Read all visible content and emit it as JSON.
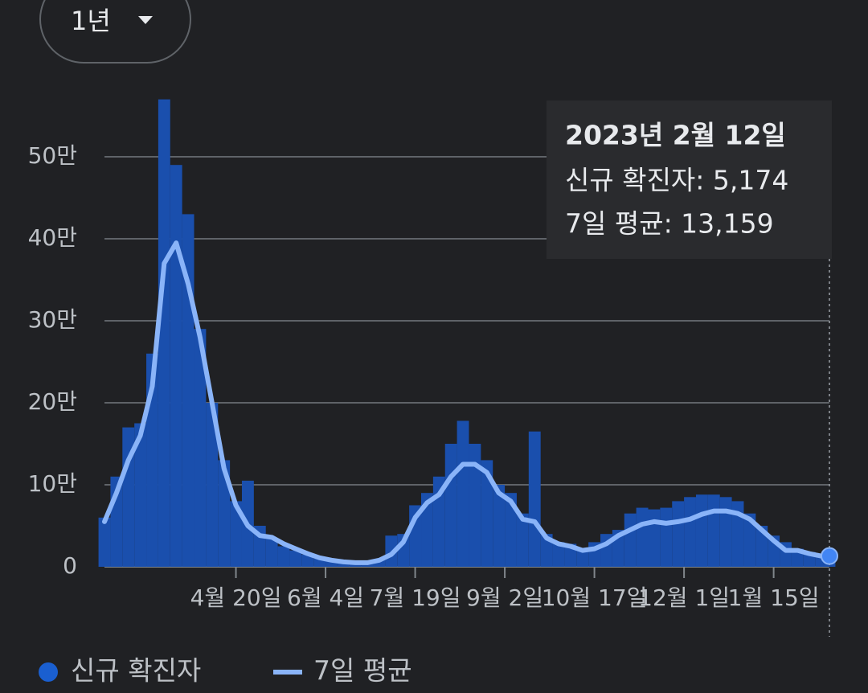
{
  "control": {
    "range": "1년"
  },
  "chart_data": {
    "type": "bar",
    "x": [
      0,
      6,
      12,
      18,
      24,
      30,
      36,
      42,
      48,
      54,
      60,
      66,
      72,
      78,
      84,
      90,
      96,
      102,
      108,
      114,
      120,
      126,
      132,
      138,
      144,
      150,
      156,
      162,
      168,
      174,
      180,
      186,
      192,
      198,
      204,
      210,
      216,
      222,
      228,
      234,
      240,
      246,
      252,
      258,
      264,
      270,
      276,
      282,
      288,
      294,
      300,
      306,
      312,
      318,
      324,
      330,
      336,
      342,
      348,
      354,
      360,
      364
    ],
    "xlim": [
      0,
      364
    ],
    "xticks": [
      {
        "value": 66,
        "label": "4월 20일"
      },
      {
        "value": 111,
        "label": "6월 4일"
      },
      {
        "value": 156,
        "label": "7월 19일"
      },
      {
        "value": 201,
        "label": "9월 2일"
      },
      {
        "value": 246,
        "label": "10월 17일"
      },
      {
        "value": 291,
        "label": "12월 1일"
      },
      {
        "value": 336,
        "label": "1월 15일"
      }
    ],
    "ylim": [
      0,
      580000
    ],
    "yticks": [
      0,
      {
        "value": 100000,
        "label": "10만"
      },
      {
        "value": 200000,
        "label": "20만"
      },
      {
        "value": 300000,
        "label": "30만"
      },
      {
        "value": 400000,
        "label": "40만"
      },
      {
        "value": 500000,
        "label": "50만"
      }
    ],
    "grid": true,
    "series": [
      {
        "name": "신규 확진자",
        "type": "bar",
        "color": "#1a4fad",
        "values": [
          60000,
          110000,
          170000,
          175000,
          260000,
          570000,
          490000,
          430000,
          290000,
          200000,
          130000,
          80000,
          105000,
          50000,
          35000,
          25000,
          20000,
          15000,
          10000,
          9000,
          7000,
          6000,
          6000,
          9000,
          38000,
          40000,
          75000,
          90000,
          110000,
          150000,
          178000,
          150000,
          130000,
          100000,
          90000,
          65000,
          165000,
          40000,
          30000,
          28000,
          20000,
          30000,
          40000,
          45000,
          65000,
          72000,
          70000,
          72000,
          80000,
          85000,
          88000,
          88000,
          85000,
          80000,
          65000,
          50000,
          38000,
          30000,
          22000,
          18000,
          15000,
          5174
        ]
      },
      {
        "name": "7일 평균",
        "type": "line",
        "color": "#8ab4f8",
        "values": [
          55000,
          90000,
          130000,
          160000,
          220000,
          370000,
          395000,
          345000,
          280000,
          200000,
          120000,
          75000,
          50000,
          38000,
          36000,
          28000,
          22000,
          16000,
          11000,
          8000,
          6000,
          5000,
          5000,
          8000,
          15000,
          30000,
          60000,
          78000,
          88000,
          110000,
          125000,
          125000,
          115000,
          90000,
          80000,
          58000,
          55000,
          35000,
          28000,
          25000,
          20000,
          22000,
          28000,
          38000,
          45000,
          52000,
          55000,
          53000,
          55000,
          58000,
          64000,
          68000,
          68000,
          65000,
          58000,
          45000,
          32000,
          20000,
          20000,
          16000,
          13000,
          13159
        ]
      }
    ],
    "tooltip": {
      "title": "2023년 2월 12일",
      "lines": [
        "신규 확진자: 5,174",
        "7일 평균: 13,159"
      ]
    }
  }
}
